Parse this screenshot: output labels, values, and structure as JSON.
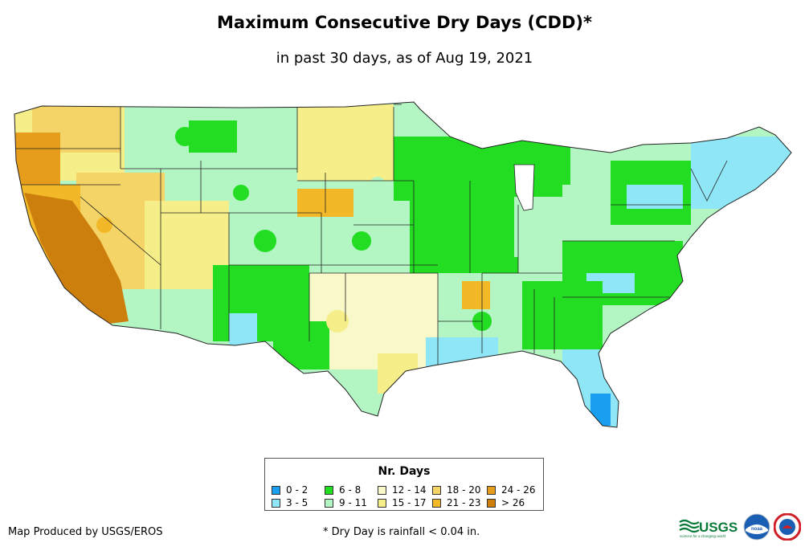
{
  "title": "Maximum Consecutive Dry Days (CDD)*",
  "subtitle": "in past 30 days, as of Aug 19, 2021",
  "legend": {
    "title": "Nr. Days",
    "items": [
      {
        "label": "0 - 2",
        "color": "#1a9ff0"
      },
      {
        "label": "3 - 5",
        "color": "#8ee6f7"
      },
      {
        "label": "6 - 8",
        "color": "#22dd22"
      },
      {
        "label": "9 - 11",
        "color": "#b3f5c3"
      },
      {
        "label": "12 - 14",
        "color": "#f8f8c8"
      },
      {
        "label": "15 - 17",
        "color": "#f6ee88"
      },
      {
        "label": "18 - 20",
        "color": "#f4d466"
      },
      {
        "label": "21 - 23",
        "color": "#f2b828"
      },
      {
        "label": "24 - 26",
        "color": "#e69d1c"
      },
      {
        "label": "> 26",
        "color": "#cc7f0c"
      }
    ]
  },
  "credit": "Map Produced by USGS/EROS",
  "footnote": "* Dry Day is rainfall < 0.04 in.",
  "logos": {
    "usgs": "USGS",
    "usgs_tagline": "science for a changing world",
    "noaa": "noaa"
  },
  "map": {
    "name": "contiguous United States",
    "icons": [
      "usgs-logo-icon",
      "noaa-logo-icon",
      "nws-logo-icon"
    ]
  }
}
